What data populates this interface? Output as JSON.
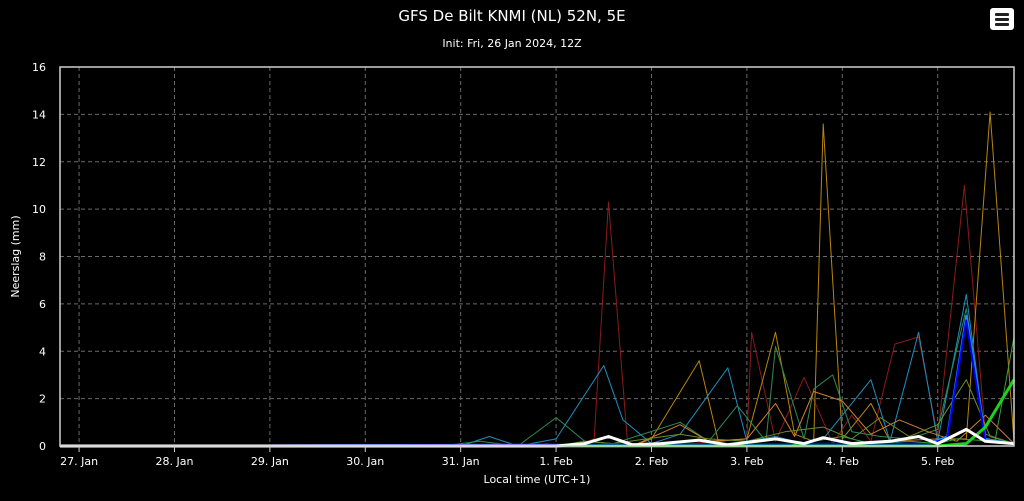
{
  "header": {
    "title": "GFS De Bilt KNMI (NL) 52N, 5E",
    "subtitle": "Init: Fri, 26 Jan 2024, 12Z",
    "menu_icon": "hamburger-menu-icon"
  },
  "chart_data": {
    "type": "line",
    "xlabel": "Local time (UTC+1)",
    "ylabel": "Neerslag (mm)",
    "ylim": [
      0,
      16
    ],
    "yticks": [
      0,
      2,
      4,
      6,
      8,
      10,
      12,
      14,
      16
    ],
    "xlim": [
      -0.2,
      9.8
    ],
    "x_tick_positions": [
      0,
      1,
      2,
      3,
      4,
      5,
      6,
      7,
      8,
      9
    ],
    "x_tick_labels": [
      "27. Jan",
      "28. Jan",
      "29. Jan",
      "30. Jan",
      "31. Jan",
      "1. Feb",
      "2. Feb",
      "3. Feb",
      "4. Feb",
      "5. Feb"
    ],
    "grid": true,
    "background": "#000000",
    "series": [
      {
        "color": "#8b1a1a",
        "width": 1,
        "points": [
          [
            -0.2,
            0
          ],
          [
            4.6,
            0
          ],
          [
            4.9,
            0.1
          ],
          [
            5.2,
            0
          ],
          [
            5.4,
            0.3
          ],
          [
            5.55,
            10.3
          ],
          [
            5.75,
            0.1
          ],
          [
            6.1,
            0
          ],
          [
            7.0,
            0.3
          ],
          [
            7.05,
            4.8
          ],
          [
            7.3,
            0.2
          ],
          [
            7.6,
            2.9
          ],
          [
            7.9,
            0.1
          ],
          [
            8.1,
            1.3
          ],
          [
            8.3,
            0.2
          ],
          [
            8.55,
            4.3
          ],
          [
            8.8,
            4.6
          ],
          [
            9.0,
            0.4
          ],
          [
            9.28,
            11.0
          ],
          [
            9.5,
            0.5
          ],
          [
            9.8,
            0.1
          ]
        ]
      },
      {
        "color": "#b8860b",
        "width": 1,
        "points": [
          [
            -0.2,
            0
          ],
          [
            5.8,
            0
          ],
          [
            6.0,
            0.3
          ],
          [
            6.5,
            3.6
          ],
          [
            6.7,
            0.2
          ],
          [
            7.0,
            0.3
          ],
          [
            7.3,
            4.8
          ],
          [
            7.5,
            0.5
          ],
          [
            7.7,
            0.2
          ],
          [
            7.8,
            13.6
          ],
          [
            8.0,
            0.3
          ],
          [
            8.3,
            1.8
          ],
          [
            8.5,
            0.2
          ],
          [
            9.0,
            0.3
          ],
          [
            9.3,
            0.3
          ],
          [
            9.55,
            14.1
          ],
          [
            9.8,
            0.2
          ]
        ]
      },
      {
        "color": "#1f8fbf",
        "width": 1,
        "points": [
          [
            -0.2,
            0
          ],
          [
            4.0,
            0
          ],
          [
            4.3,
            0.4
          ],
          [
            4.6,
            0
          ],
          [
            5.0,
            0.3
          ],
          [
            5.5,
            3.4
          ],
          [
            5.7,
            1.1
          ],
          [
            6.0,
            0.1
          ],
          [
            6.3,
            0.5
          ],
          [
            6.8,
            3.3
          ],
          [
            7.0,
            0.2
          ],
          [
            7.3,
            0.4
          ],
          [
            7.6,
            0.1
          ],
          [
            7.8,
            0.3
          ],
          [
            8.3,
            2.8
          ],
          [
            8.5,
            0.2
          ],
          [
            8.8,
            4.8
          ],
          [
            9.0,
            0.2
          ],
          [
            9.3,
            6.4
          ],
          [
            9.5,
            0.3
          ],
          [
            9.8,
            0.1
          ]
        ]
      },
      {
        "color": "#2e8b57",
        "width": 1,
        "points": [
          [
            -0.2,
            0
          ],
          [
            3.8,
            0
          ],
          [
            4.2,
            0.2
          ],
          [
            4.6,
            0
          ],
          [
            5.0,
            1.2
          ],
          [
            5.3,
            0.2
          ],
          [
            5.6,
            0.1
          ],
          [
            6.3,
            1.0
          ],
          [
            6.6,
            0.2
          ],
          [
            6.9,
            1.7
          ],
          [
            7.2,
            0.2
          ],
          [
            7.3,
            4.2
          ],
          [
            7.6,
            0.3
          ],
          [
            7.7,
            2.4
          ],
          [
            7.9,
            3.0
          ],
          [
            8.1,
            0.6
          ],
          [
            8.4,
            0.4
          ],
          [
            8.7,
            0.3
          ],
          [
            9.0,
            0.7
          ],
          [
            9.3,
            5.8
          ],
          [
            9.5,
            0.5
          ],
          [
            9.8,
            0.1
          ]
        ]
      },
      {
        "color": "#cd7f32",
        "width": 1,
        "points": [
          [
            -0.2,
            0
          ],
          [
            5.8,
            0
          ],
          [
            6.3,
            0.9
          ],
          [
            6.6,
            0.2
          ],
          [
            7.0,
            0.3
          ],
          [
            7.3,
            1.8
          ],
          [
            7.5,
            0.4
          ],
          [
            7.7,
            2.3
          ],
          [
            8.0,
            1.9
          ],
          [
            8.3,
            0.5
          ],
          [
            8.6,
            1.1
          ],
          [
            8.9,
            0.6
          ],
          [
            9.2,
            0.2
          ],
          [
            9.5,
            1.3
          ],
          [
            9.8,
            0.1
          ]
        ]
      },
      {
        "color": "#6b8e23",
        "width": 1,
        "points": [
          [
            -0.2,
            0
          ],
          [
            5.0,
            0
          ],
          [
            5.3,
            0.2
          ],
          [
            5.6,
            0.1
          ],
          [
            6.3,
            0.5
          ],
          [
            6.6,
            0.3
          ],
          [
            7.0,
            0.2
          ],
          [
            7.4,
            0.6
          ],
          [
            7.8,
            0.8
          ],
          [
            8.1,
            0.3
          ],
          [
            8.4,
            1.2
          ],
          [
            8.7,
            0.4
          ],
          [
            9.0,
            0.9
          ],
          [
            9.3,
            2.8
          ],
          [
            9.55,
            0.4
          ],
          [
            9.8,
            0.1
          ]
        ]
      },
      {
        "color": "#1e90ff",
        "width": 2,
        "points": [
          [
            -0.2,
            0
          ],
          [
            8.9,
            0.1
          ],
          [
            9.1,
            0.4
          ],
          [
            9.3,
            5.5
          ],
          [
            9.5,
            0.3
          ],
          [
            9.8,
            0.1
          ]
        ]
      },
      {
        "color": "#0000ff",
        "width": 2,
        "points": [
          [
            -0.2,
            0
          ],
          [
            8.9,
            0.1
          ],
          [
            9.1,
            0.3
          ],
          [
            9.3,
            5.3
          ],
          [
            9.5,
            0.2
          ],
          [
            9.8,
            0.1
          ]
        ]
      },
      {
        "color": "#3c9f3c",
        "width": 1,
        "points": [
          [
            -0.2,
            0
          ],
          [
            7.4,
            0
          ],
          [
            7.7,
            0.2
          ],
          [
            8.0,
            0.4
          ],
          [
            8.3,
            0.1
          ],
          [
            8.7,
            0.2
          ],
          [
            9.0,
            0.1
          ],
          [
            9.2,
            0.3
          ],
          [
            9.6,
            0.2
          ],
          [
            9.8,
            4.6
          ]
        ]
      },
      {
        "color": "#1fd11f",
        "width": 3,
        "points": [
          [
            -0.2,
            0
          ],
          [
            9.0,
            0
          ],
          [
            9.3,
            0.1
          ],
          [
            9.5,
            0.8
          ],
          [
            9.8,
            2.8
          ]
        ]
      },
      {
        "color": "#ffffff",
        "width": 3,
        "points": [
          [
            -0.2,
            0
          ],
          [
            5.0,
            0
          ],
          [
            5.3,
            0.1
          ],
          [
            5.55,
            0.4
          ],
          [
            5.8,
            0.05
          ],
          [
            6.1,
            0.1
          ],
          [
            6.5,
            0.25
          ],
          [
            6.8,
            0.05
          ],
          [
            7.3,
            0.3
          ],
          [
            7.6,
            0.1
          ],
          [
            7.8,
            0.35
          ],
          [
            8.1,
            0.1
          ],
          [
            8.5,
            0.2
          ],
          [
            8.8,
            0.4
          ],
          [
            9.0,
            0.1
          ],
          [
            9.3,
            0.7
          ],
          [
            9.5,
            0.2
          ],
          [
            9.8,
            0.1
          ]
        ]
      }
    ]
  }
}
